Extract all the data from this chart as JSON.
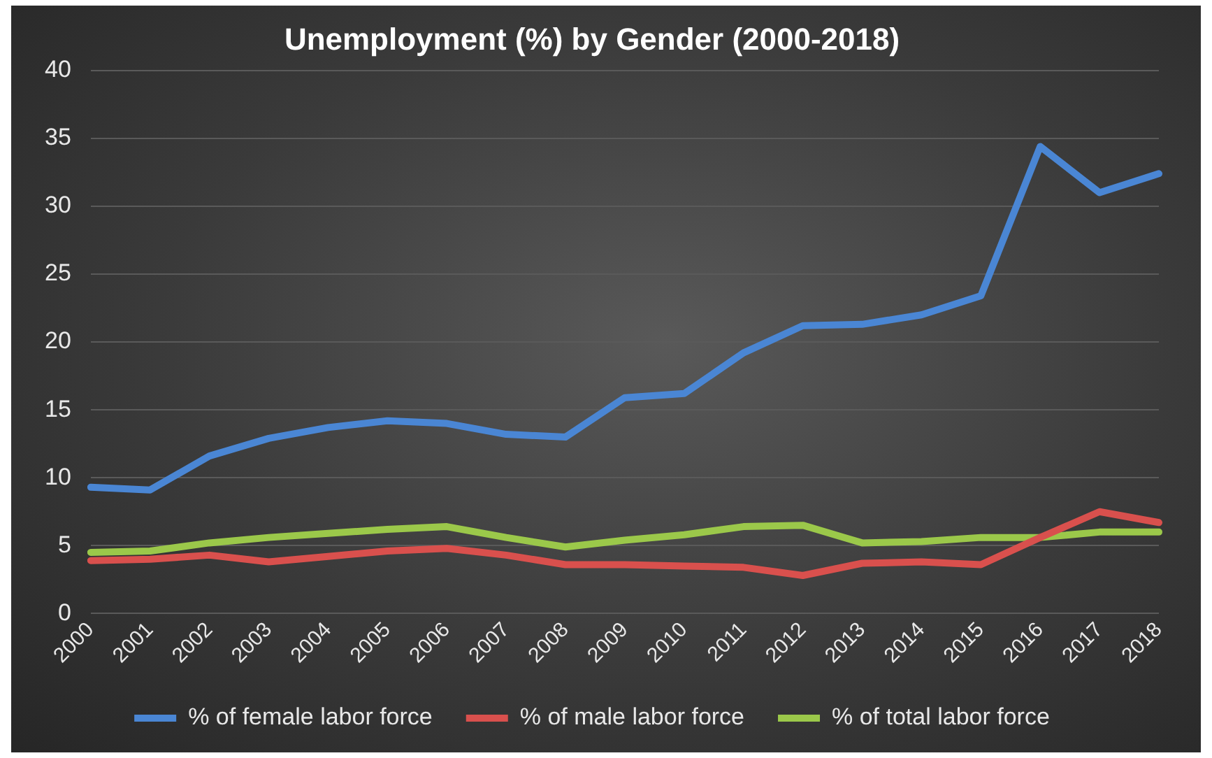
{
  "chart_data": {
    "type": "line",
    "title": "Unemployment (%) by Gender (2000-2018)",
    "categories": [
      "2000",
      "2001",
      "2002",
      "2003",
      "2004",
      "2005",
      "2006",
      "2007",
      "2008",
      "2009",
      "2010",
      "2011",
      "2012",
      "2013",
      "2014",
      "2015",
      "2016",
      "2017",
      "2018"
    ],
    "series": [
      {
        "name": "% of female labor force",
        "color": "#4a86d4",
        "values": [
          9.3,
          9.1,
          11.6,
          12.9,
          13.7,
          14.2,
          14.0,
          13.2,
          13.0,
          15.9,
          16.2,
          19.2,
          21.2,
          21.3,
          22.0,
          23.4,
          34.4,
          31.0,
          32.4
        ]
      },
      {
        "name": "% of male labor force",
        "color": "#d9504d",
        "values": [
          3.9,
          4.0,
          4.3,
          3.8,
          4.2,
          4.6,
          4.8,
          4.3,
          3.6,
          3.6,
          3.5,
          3.4,
          2.8,
          3.7,
          3.8,
          3.6,
          5.6,
          7.5,
          6.7
        ]
      },
      {
        "name": "% of total labor force",
        "color": "#9bc84a",
        "values": [
          4.5,
          4.6,
          5.2,
          5.6,
          5.9,
          6.2,
          6.4,
          5.6,
          4.9,
          5.4,
          5.8,
          6.4,
          6.5,
          5.2,
          5.3,
          5.6,
          5.6,
          6.0,
          6.0
        ]
      }
    ],
    "ylim": [
      0,
      40
    ],
    "yticks": [
      0,
      5,
      10,
      15,
      20,
      25,
      30,
      35,
      40
    ],
    "grid": "y",
    "legend": "bottom",
    "marker": "none",
    "line_style": "solid"
  }
}
